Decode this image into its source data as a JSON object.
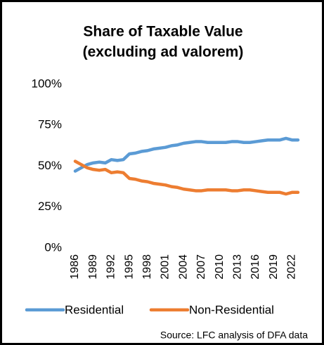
{
  "chart_data": {
    "type": "line",
    "title": [
      "Share of Taxable Value",
      "(excluding ad valorem)"
    ],
    "x": [
      1986,
      1987,
      1988,
      1989,
      1990,
      1991,
      1992,
      1993,
      1994,
      1995,
      1996,
      1997,
      1998,
      1999,
      2000,
      2001,
      2002,
      2003,
      2004,
      2005,
      2006,
      2007,
      2008,
      2009,
      2010,
      2011,
      2012,
      2013,
      2014,
      2015,
      2016,
      2017,
      2018,
      2019,
      2020,
      2021,
      2022,
      2023
    ],
    "xlim": [
      1986,
      2023
    ],
    "xticks": [
      1986,
      1989,
      1992,
      1995,
      1998,
      2001,
      2004,
      2007,
      2010,
      2013,
      2016,
      2019,
      2022
    ],
    "ylim": [
      0,
      100
    ],
    "yticks": [
      {
        "value": 0,
        "label": "0%"
      },
      {
        "value": 25,
        "label": "25%"
      },
      {
        "value": 50,
        "label": "50%"
      },
      {
        "value": 75,
        "label": "75%"
      },
      {
        "value": 100,
        "label": "100%"
      }
    ],
    "series": [
      {
        "name": "Residential",
        "color": "#5b9bd5",
        "values": [
          47,
          49,
          51,
          52,
          52.5,
          52,
          54,
          53.5,
          54,
          57.5,
          58,
          59,
          59.5,
          60.5,
          61,
          61.5,
          62.5,
          63,
          64,
          64.5,
          65,
          65,
          64.5,
          64.5,
          64.5,
          64.5,
          65,
          65,
          64.5,
          64.5,
          65,
          65.5,
          66,
          66,
          66,
          67,
          66,
          66
        ]
      },
      {
        "name": "Non-Residential",
        "color": "#ed7d31",
        "values": [
          53,
          51,
          49,
          48,
          47.5,
          48,
          46,
          46.5,
          46,
          42.5,
          42,
          41,
          40.5,
          39.5,
          39,
          38.5,
          37.5,
          37,
          36,
          35.5,
          35,
          35,
          35.5,
          35.5,
          35.5,
          35.5,
          35,
          35,
          35.5,
          35.5,
          35,
          34.5,
          34,
          34,
          34,
          33,
          34,
          34
        ]
      }
    ],
    "legend": "bottom",
    "annotation": "Source: LFC analysis of DFA data"
  }
}
